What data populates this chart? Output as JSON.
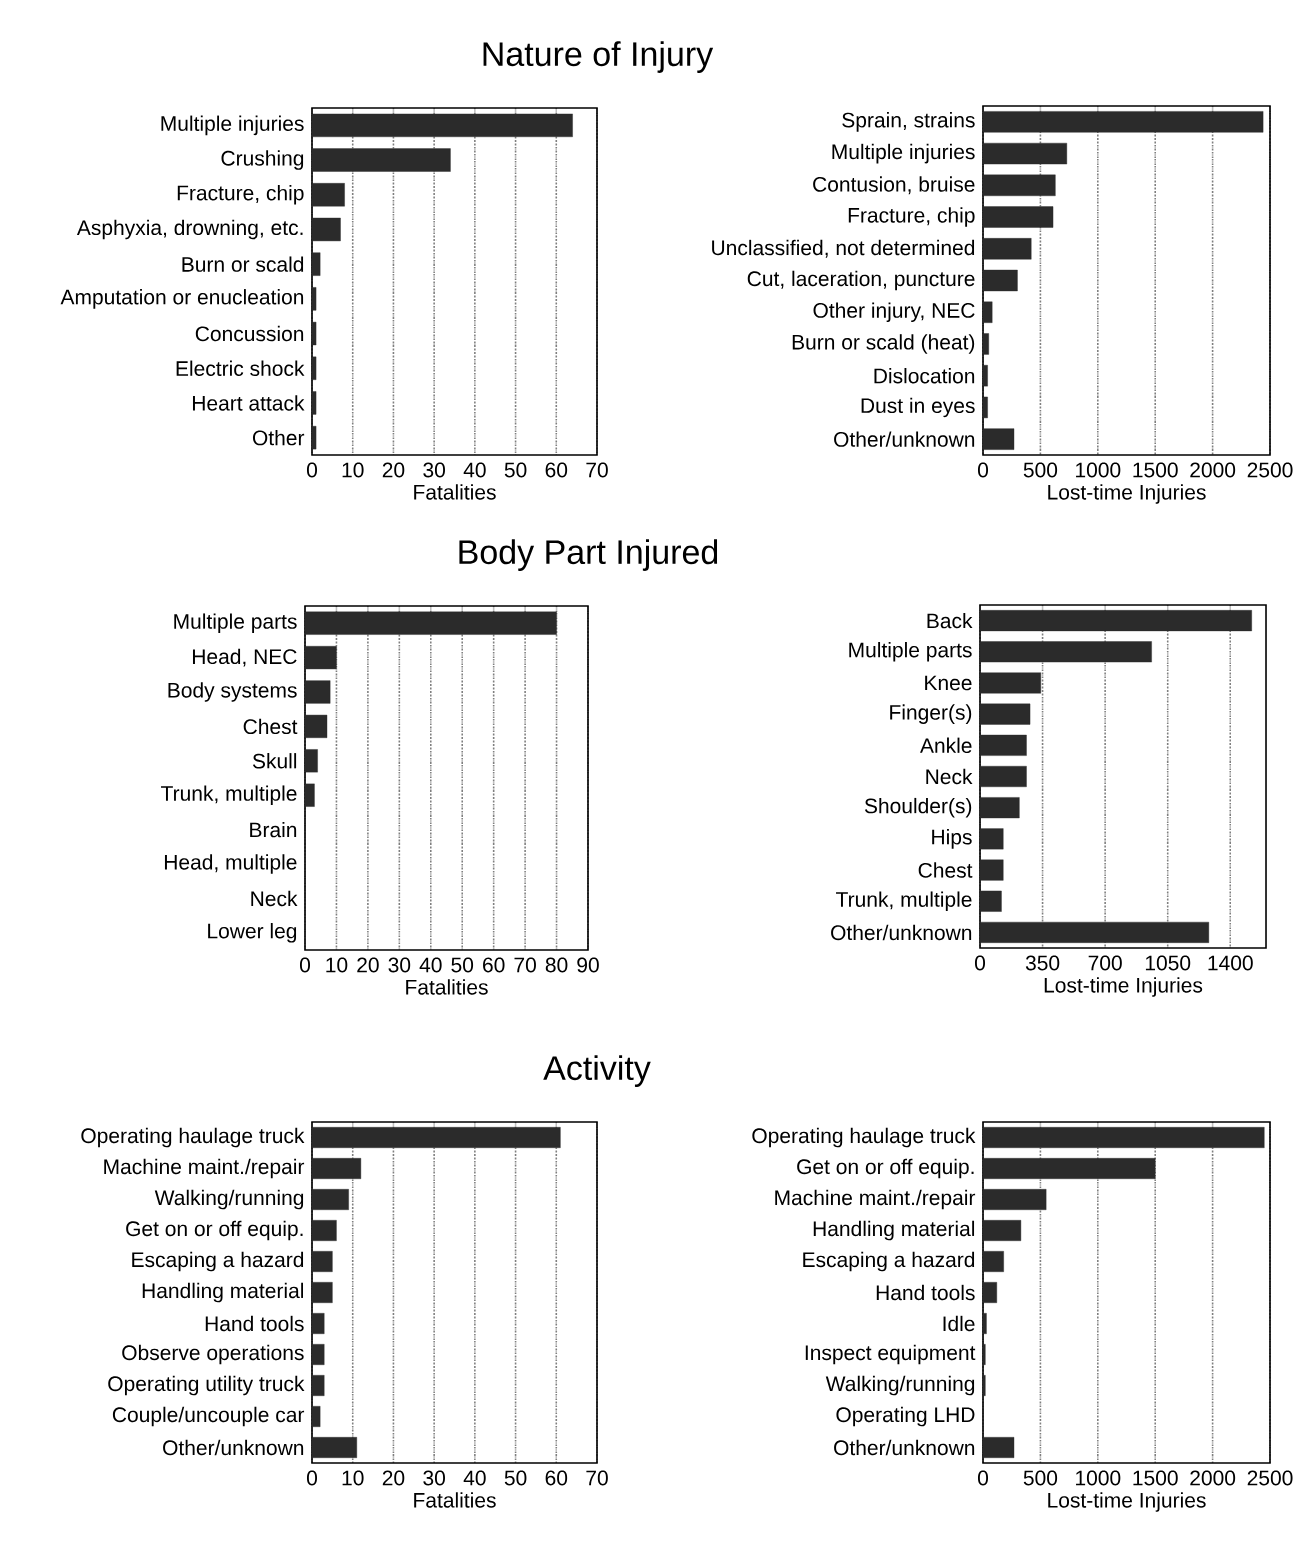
{
  "chart_data": [
    {
      "type": "bar",
      "orientation": "horizontal",
      "title": "Nature of Injury",
      "xlabel": "Fatalities",
      "grid": "x",
      "color": "#2b2b2b",
      "categories": [
        "Multiple injuries",
        "Crushing",
        "Fracture, chip",
        "Asphyxia, drowning, etc.",
        "Burn or scald",
        "Amputation or enucleation",
        "Concussion",
        "Electric shock",
        "Heart attack",
        "Other"
      ],
      "values": [
        64,
        34,
        8,
        7,
        2,
        1,
        1,
        1,
        1,
        1
      ],
      "xlim": [
        0,
        70
      ],
      "xticks": [
        0,
        10,
        20,
        30,
        40,
        50,
        60,
        70
      ]
    },
    {
      "type": "bar",
      "orientation": "horizontal",
      "xlabel": "Lost-time Injuries",
      "grid": "x",
      "color": "#2b2b2b",
      "categories": [
        "Sprain, strains",
        "Multiple injuries",
        "Contusion, bruise",
        "Fracture, chip",
        "Unclassified, not determined",
        "Cut, laceration, puncture",
        "Other injury, NEC",
        "Burn or scald (heat)",
        "Dislocation",
        "Dust in eyes",
        "Other/unknown"
      ],
      "values": [
        2440,
        730,
        630,
        610,
        420,
        300,
        80,
        50,
        40,
        40,
        270
      ],
      "xlim": [
        0,
        2500
      ],
      "xticks": [
        0,
        500,
        1000,
        1500,
        2000,
        2500
      ]
    },
    {
      "type": "bar",
      "orientation": "horizontal",
      "title": "Body Part Injured",
      "xlabel": "Fatalities",
      "grid": "x",
      "color": "#2b2b2b",
      "categories": [
        "Multiple parts",
        "Head, NEC",
        "Body systems",
        "Chest",
        "Skull",
        "Trunk, multiple",
        "Brain",
        "Head, multiple",
        "Neck",
        "Lower leg"
      ],
      "values": [
        80,
        10,
        8,
        7,
        4,
        3,
        0,
        0,
        0,
        0
      ],
      "xlim": [
        0,
        90
      ],
      "xticks": [
        0,
        10,
        20,
        30,
        40,
        50,
        60,
        70,
        80,
        90
      ]
    },
    {
      "type": "bar",
      "orientation": "horizontal",
      "xlabel": "Lost-time Injuries",
      "grid": "x",
      "color": "#2b2b2b",
      "categories": [
        "Back",
        "Multiple parts",
        "Knee",
        "Finger(s)",
        "Ankle",
        "Neck",
        "Shoulder(s)",
        "Hips",
        "Chest",
        "Trunk, multiple",
        "Other/unknown"
      ],
      "values": [
        1520,
        960,
        340,
        280,
        260,
        260,
        220,
        130,
        130,
        120,
        1280
      ],
      "xlim": [
        0,
        1600
      ],
      "xticks": [
        0,
        350,
        700,
        1050,
        1400
      ]
    },
    {
      "type": "bar",
      "orientation": "horizontal",
      "title": "Activity",
      "xlabel": "Fatalities",
      "grid": "x",
      "color": "#2b2b2b",
      "categories": [
        "Operating haulage truck",
        "Machine maint./repair",
        "Walking/running",
        "Get on or off equip.",
        "Escaping a hazard",
        "Handling material",
        "Hand tools",
        "Observe operations",
        "Operating utility truck",
        "Couple/uncouple car",
        "Other/unknown"
      ],
      "values": [
        61,
        12,
        9,
        6,
        5,
        5,
        3,
        3,
        3,
        2,
        11
      ],
      "xlim": [
        0,
        70
      ],
      "xticks": [
        0,
        10,
        20,
        30,
        40,
        50,
        60,
        70
      ]
    },
    {
      "type": "bar",
      "orientation": "horizontal",
      "xlabel": "Lost-time Injuries",
      "grid": "x",
      "color": "#2b2b2b",
      "categories": [
        "Operating haulage truck",
        "Get on or off equip.",
        "Machine maint./repair",
        "Handling material",
        "Escaping a hazard",
        "Hand tools",
        "Idle",
        "Inspect equipment",
        "Walking/running",
        "Operating LHD",
        "Other/unknown"
      ],
      "values": [
        2450,
        1500,
        550,
        330,
        180,
        120,
        30,
        20,
        20,
        0,
        270
      ],
      "xlim": [
        0,
        2500
      ],
      "xticks": [
        0,
        500,
        1000,
        1500,
        2000,
        2500
      ]
    }
  ]
}
